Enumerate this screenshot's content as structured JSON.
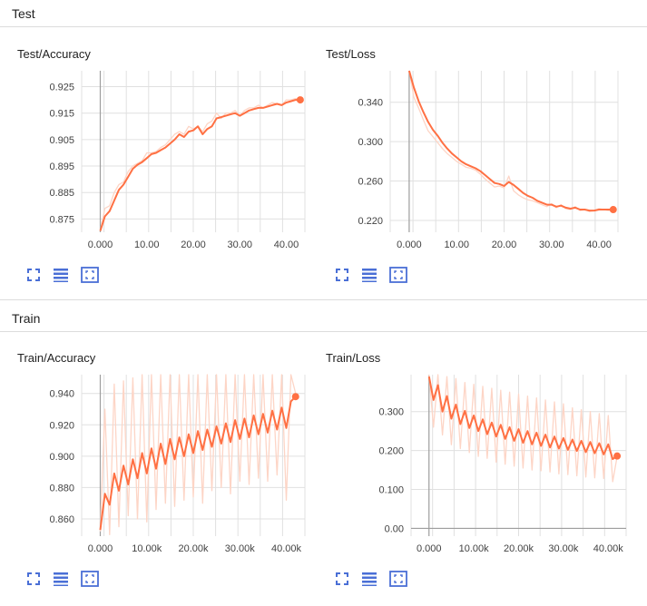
{
  "sections": [
    {
      "label": "Test"
    },
    {
      "label": "Train"
    }
  ],
  "colors": {
    "smoothed": "#ff7043",
    "raw": "#fdd5c6",
    "grid": "#e0e0e0",
    "axis": "#9e9e9e",
    "icon": "#4a6fd6"
  },
  "icons": [
    "fit-domain-icon",
    "toggle-log-scale-icon",
    "fit-to-data-icon"
  ],
  "chart_data": [
    {
      "title": "Test/Accuracy",
      "type": "line",
      "xlim": [
        -4,
        44
      ],
      "ylim": [
        0.87,
        0.931
      ],
      "xticks": [
        0,
        10,
        20,
        30,
        40
      ],
      "xtick_labels": [
        "0.000",
        "10.00",
        "20.00",
        "30.00",
        "40.00"
      ],
      "yticks": [
        0.875,
        0.885,
        0.895,
        0.905,
        0.915,
        0.925
      ],
      "ytick_labels": [
        "0.875",
        "0.885",
        "0.895",
        "0.905",
        "0.915",
        "0.925"
      ],
      "grid": true,
      "series": [
        {
          "smoothed": true,
          "x": [
            0,
            1,
            2,
            3,
            4,
            5,
            6,
            7,
            8,
            9,
            10,
            11,
            12,
            13,
            14,
            15,
            16,
            17,
            18,
            19,
            20,
            21,
            22,
            23,
            24,
            25,
            26,
            27,
            28,
            29,
            30,
            31,
            32,
            33,
            34,
            35,
            36,
            37,
            38,
            39,
            40,
            41,
            42,
            43
          ],
          "y": [
            0.8705,
            0.876,
            0.878,
            0.882,
            0.886,
            0.888,
            0.891,
            0.894,
            0.8955,
            0.8965,
            0.898,
            0.8995,
            0.9,
            0.901,
            0.902,
            0.9035,
            0.905,
            0.907,
            0.906,
            0.908,
            0.9085,
            0.91,
            0.907,
            0.909,
            0.91,
            0.913,
            0.9135,
            0.914,
            0.9145,
            0.915,
            0.914,
            0.915,
            0.916,
            0.9165,
            0.917,
            0.917,
            0.9175,
            0.918,
            0.9185,
            0.918,
            0.919,
            0.9195,
            0.92,
            0.92
          ]
        },
        {
          "smoothed": false,
          "x": [
            0,
            1,
            2,
            3,
            4,
            5,
            6,
            7,
            8,
            9,
            10,
            11,
            12,
            13,
            14,
            15,
            16,
            17,
            18,
            19,
            20,
            21,
            22,
            23,
            24,
            25,
            26,
            27,
            28,
            29,
            30,
            31,
            32,
            33,
            34,
            35,
            36,
            37,
            38,
            39,
            40,
            41,
            42,
            43
          ],
          "y": [
            0.8705,
            0.879,
            0.88,
            0.885,
            0.888,
            0.889,
            0.893,
            0.895,
            0.896,
            0.897,
            0.9,
            0.9,
            0.9005,
            0.902,
            0.903,
            0.905,
            0.907,
            0.908,
            0.907,
            0.91,
            0.909,
            0.91,
            0.908,
            0.911,
            0.912,
            0.915,
            0.913,
            0.915,
            0.915,
            0.916,
            0.914,
            0.916,
            0.917,
            0.917,
            0.918,
            0.917,
            0.918,
            0.919,
            0.9185,
            0.918,
            0.92,
            0.92,
            0.9205,
            0.92
          ]
        }
      ]
    },
    {
      "title": "Test/Loss",
      "type": "line",
      "xlim": [
        -4,
        44
      ],
      "ylim": [
        0.208,
        0.372
      ],
      "xticks": [
        0,
        10,
        20,
        30,
        40
      ],
      "xtick_labels": [
        "0.000",
        "10.00",
        "20.00",
        "30.00",
        "40.00"
      ],
      "yticks": [
        0.22,
        0.26,
        0.3,
        0.34
      ],
      "ytick_labels": [
        "0.220",
        "0.260",
        "0.300",
        "0.340"
      ],
      "grid": true,
      "series": [
        {
          "smoothed": true,
          "x": [
            0,
            1,
            2,
            3,
            4,
            5,
            6,
            7,
            8,
            9,
            10,
            11,
            12,
            13,
            14,
            15,
            16,
            17,
            18,
            19,
            20,
            21,
            22,
            23,
            24,
            25,
            26,
            27,
            28,
            29,
            30,
            31,
            32,
            33,
            34,
            35,
            36,
            37,
            38,
            39,
            40,
            41,
            42,
            43
          ],
          "y": [
            0.372,
            0.355,
            0.341,
            0.33,
            0.32,
            0.312,
            0.306,
            0.299,
            0.293,
            0.288,
            0.284,
            0.28,
            0.277,
            0.275,
            0.273,
            0.27,
            0.266,
            0.262,
            0.258,
            0.257,
            0.255,
            0.259,
            0.256,
            0.252,
            0.248,
            0.245,
            0.243,
            0.24,
            0.238,
            0.236,
            0.236,
            0.234,
            0.235,
            0.233,
            0.232,
            0.233,
            0.231,
            0.231,
            0.23,
            0.23,
            0.231,
            0.231,
            0.231,
            0.231
          ]
        },
        {
          "smoothed": false,
          "x": [
            0,
            1,
            2,
            3,
            4,
            5,
            6,
            7,
            8,
            9,
            10,
            11,
            12,
            13,
            14,
            15,
            16,
            17,
            18,
            19,
            20,
            21,
            22,
            23,
            24,
            25,
            26,
            27,
            28,
            29,
            30,
            31,
            32,
            33,
            34,
            35,
            36,
            37,
            38,
            39,
            40,
            41,
            42,
            43
          ],
          "y": [
            0.372,
            0.345,
            0.334,
            0.322,
            0.311,
            0.305,
            0.299,
            0.293,
            0.288,
            0.284,
            0.28,
            0.277,
            0.274,
            0.273,
            0.271,
            0.267,
            0.262,
            0.258,
            0.254,
            0.255,
            0.253,
            0.265,
            0.25,
            0.246,
            0.243,
            0.241,
            0.24,
            0.238,
            0.236,
            0.234,
            0.237,
            0.233,
            0.236,
            0.232,
            0.231,
            0.234,
            0.23,
            0.231,
            0.229,
            0.23,
            0.232,
            0.231,
            0.23,
            0.231
          ]
        }
      ]
    },
    {
      "title": "Train/Accuracy",
      "type": "line",
      "xlim": [
        -4000,
        44000
      ],
      "ylim": [
        0.849,
        0.952
      ],
      "xticks": [
        0,
        10000,
        20000,
        30000,
        40000
      ],
      "xtick_labels": [
        "0.000",
        "10.00k",
        "20.00k",
        "30.00k",
        "40.00k"
      ],
      "yticks": [
        0.86,
        0.88,
        0.9,
        0.92,
        0.94
      ],
      "ytick_labels": [
        "0.860",
        "0.880",
        "0.900",
        "0.920",
        "0.940"
      ],
      "grid": true,
      "series": [
        {
          "smoothed": true,
          "x": [
            0,
            1000,
            2000,
            3000,
            4000,
            5000,
            6000,
            7000,
            8000,
            9000,
            10000,
            11000,
            12000,
            13000,
            14000,
            15000,
            16000,
            17000,
            18000,
            19000,
            20000,
            21000,
            22000,
            23000,
            24000,
            25000,
            26000,
            27000,
            28000,
            29000,
            30000,
            31000,
            32000,
            33000,
            34000,
            35000,
            36000,
            37000,
            38000,
            39000,
            40000,
            41000,
            42000
          ],
          "y": [
            0.853,
            0.876,
            0.869,
            0.889,
            0.878,
            0.894,
            0.882,
            0.898,
            0.886,
            0.902,
            0.889,
            0.905,
            0.892,
            0.908,
            0.895,
            0.911,
            0.898,
            0.912,
            0.9,
            0.914,
            0.902,
            0.916,
            0.904,
            0.917,
            0.906,
            0.919,
            0.908,
            0.921,
            0.909,
            0.923,
            0.911,
            0.924,
            0.912,
            0.926,
            0.914,
            0.927,
            0.915,
            0.929,
            0.917,
            0.931,
            0.918,
            0.935,
            0.938
          ]
        },
        {
          "smoothed": false,
          "x": [
            0,
            1000,
            2000,
            3000,
            4000,
            5000,
            6000,
            7000,
            8000,
            9000,
            10000,
            11000,
            12000,
            13000,
            14000,
            15000,
            16000,
            17000,
            18000,
            19000,
            20000,
            21000,
            22000,
            23000,
            24000,
            25000,
            26000,
            27000,
            28000,
            29000,
            30000,
            31000,
            32000,
            33000,
            34000,
            35000,
            36000,
            37000,
            38000,
            39000,
            40000,
            41000,
            42000
          ],
          "y": [
            0.852,
            0.93,
            0.85,
            0.946,
            0.855,
            0.948,
            0.862,
            0.95,
            0.86,
            0.952,
            0.858,
            0.952,
            0.866,
            0.952,
            0.87,
            0.952,
            0.868,
            0.952,
            0.872,
            0.952,
            0.874,
            0.952,
            0.87,
            0.952,
            0.878,
            0.952,
            0.88,
            0.952,
            0.876,
            0.952,
            0.884,
            0.952,
            0.882,
            0.952,
            0.886,
            0.952,
            0.884,
            0.952,
            0.888,
            0.952,
            0.872,
            0.952,
            0.94
          ]
        }
      ]
    },
    {
      "title": "Train/Loss",
      "type": "line",
      "xlim": [
        -4000,
        44000
      ],
      "ylim": [
        -0.02,
        0.395
      ],
      "xticks": [
        0,
        10000,
        20000,
        30000,
        40000
      ],
      "xtick_labels": [
        "0.000",
        "10.00k",
        "20.00k",
        "30.00k",
        "40.00k"
      ],
      "yticks": [
        0.0,
        0.1,
        0.2,
        0.3
      ],
      "ytick_labels": [
        "0.00",
        "0.100",
        "0.200",
        "0.300"
      ],
      "grid": true,
      "series": [
        {
          "smoothed": true,
          "x": [
            0,
            1000,
            2000,
            3000,
            4000,
            5000,
            6000,
            7000,
            8000,
            9000,
            10000,
            11000,
            12000,
            13000,
            14000,
            15000,
            16000,
            17000,
            18000,
            19000,
            20000,
            21000,
            22000,
            23000,
            24000,
            25000,
            26000,
            27000,
            28000,
            29000,
            30000,
            31000,
            32000,
            33000,
            34000,
            35000,
            36000,
            37000,
            38000,
            39000,
            40000,
            41000,
            42000
          ],
          "y": [
            0.39,
            0.33,
            0.368,
            0.3,
            0.34,
            0.282,
            0.318,
            0.268,
            0.302,
            0.258,
            0.29,
            0.25,
            0.28,
            0.242,
            0.272,
            0.236,
            0.266,
            0.23,
            0.26,
            0.225,
            0.255,
            0.22,
            0.25,
            0.216,
            0.246,
            0.212,
            0.241,
            0.208,
            0.236,
            0.205,
            0.232,
            0.202,
            0.228,
            0.199,
            0.225,
            0.196,
            0.222,
            0.193,
            0.219,
            0.19,
            0.216,
            0.178,
            0.186
          ]
        },
        {
          "smoothed": false,
          "x": [
            0,
            1000,
            2000,
            3000,
            4000,
            5000,
            6000,
            7000,
            8000,
            9000,
            10000,
            11000,
            12000,
            13000,
            14000,
            15000,
            16000,
            17000,
            18000,
            19000,
            20000,
            21000,
            22000,
            23000,
            24000,
            25000,
            26000,
            27000,
            28000,
            29000,
            30000,
            31000,
            32000,
            33000,
            34000,
            35000,
            36000,
            37000,
            38000,
            39000,
            40000,
            41000,
            42000
          ],
          "y": [
            0.395,
            0.26,
            0.395,
            0.24,
            0.39,
            0.215,
            0.385,
            0.205,
            0.375,
            0.195,
            0.37,
            0.185,
            0.365,
            0.18,
            0.36,
            0.17,
            0.355,
            0.165,
            0.35,
            0.16,
            0.345,
            0.155,
            0.34,
            0.15,
            0.335,
            0.148,
            0.33,
            0.145,
            0.325,
            0.14,
            0.32,
            0.138,
            0.31,
            0.135,
            0.305,
            0.132,
            0.3,
            0.13,
            0.295,
            0.128,
            0.29,
            0.12,
            0.185
          ]
        }
      ]
    }
  ]
}
